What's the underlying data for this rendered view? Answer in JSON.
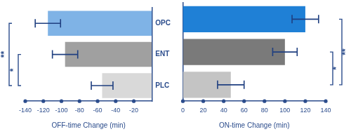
{
  "chart_data": [
    {
      "type": "bar",
      "orientation": "horizontal",
      "xlabel": "OFF-time Change (min)",
      "categories": [
        "OPC",
        "ENT",
        "PLC"
      ],
      "values": [
        -115,
        -96,
        -55
      ],
      "errors": [
        14,
        14,
        12
      ],
      "colors": [
        "#7fb3e6",
        "#a0a0a0",
        "#d9d9d9"
      ],
      "xlim": [
        -140,
        0
      ],
      "xticks": [
        -140,
        -120,
        -100,
        -80,
        -60,
        -40,
        -20
      ],
      "annotations": [
        {
          "text": "**",
          "categories": [
            "OPC",
            "PLC"
          ]
        },
        {
          "text": "*",
          "categories": [
            "ENT",
            "PLC"
          ]
        }
      ]
    },
    {
      "type": "bar",
      "orientation": "horizontal",
      "xlabel": "ON-time Change (min)",
      "categories": [
        "OPC",
        "ENT",
        "PLC"
      ],
      "values": [
        120,
        100,
        47
      ],
      "errors": [
        13,
        12,
        13
      ],
      "colors": [
        "#1f80d6",
        "#7a7a7a",
        "#c4c4c4"
      ],
      "xlim": [
        0,
        140
      ],
      "xticks": [
        0,
        20,
        40,
        60,
        80,
        100,
        120,
        140
      ],
      "tick_labels": "x",
      "annotations": [
        {
          "text": "**",
          "categories": [
            "OPC",
            "PLC"
          ]
        },
        {
          "text": "*",
          "categories": [
            "ENT",
            "PLC"
          ]
        }
      ]
    }
  ]
}
